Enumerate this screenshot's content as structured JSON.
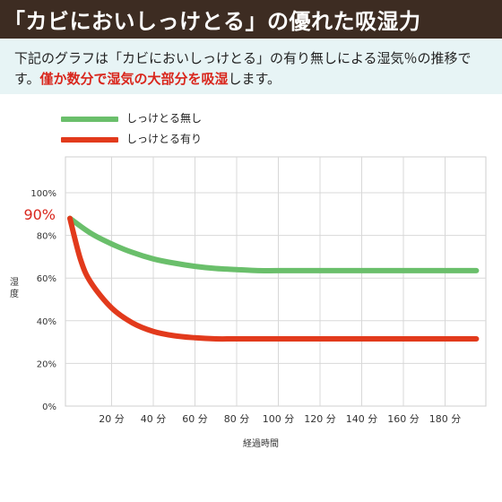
{
  "header": {
    "title": "「カビにおいしっけとる」の優れた吸湿力"
  },
  "description": {
    "part1": "下記のグラフは「カビにおいしっけとる」の有り無しによる湿気％の推移です。",
    "highlight": "僅か数分で湿気の大部分を吸湿",
    "part2": "します。"
  },
  "colors": {
    "header_bg": "#3d2c22",
    "desc_bg": "#e7f4f5",
    "highlight": "#d9261c",
    "series_with": "#6abf6b",
    "series_without": "#e23a1c",
    "grid": "#d8d8d8"
  },
  "chart_data": {
    "type": "line",
    "xlabel": "経過時間",
    "ylabel": "湿度",
    "xlim": [
      0,
      195
    ],
    "ylim": [
      0,
      100
    ],
    "x_ticks": [
      20,
      40,
      60,
      80,
      100,
      120,
      140,
      160,
      180
    ],
    "x_tick_labels": [
      "20 分",
      "40 分",
      "60 分",
      "80 分",
      "100 分",
      "120 分",
      "140 分",
      "160 分",
      "180 分"
    ],
    "y_ticks": [
      0,
      20,
      40,
      60,
      80,
      100
    ],
    "y_tick_labels": [
      "0%",
      "20%",
      "40%",
      "60%",
      "80%",
      "100%"
    ],
    "annotation": {
      "text": "90%",
      "y": 90
    },
    "grid": true,
    "legend_position": "top-left",
    "series": [
      {
        "name": "しっけとる無し",
        "color": "#6abf6b",
        "x": [
          0,
          10,
          20,
          30,
          40,
          50,
          60,
          70,
          80,
          90,
          100,
          120,
          140,
          160,
          180,
          195
        ],
        "values": [
          88,
          81,
          76,
          72,
          69,
          67,
          65.5,
          64.5,
          64,
          63.5,
          63.5,
          63.5,
          63.5,
          63.5,
          63.5,
          63.5
        ]
      },
      {
        "name": "しっけとる有り",
        "color": "#e23a1c",
        "x": [
          0,
          5,
          10,
          20,
          30,
          40,
          50,
          60,
          70,
          80,
          100,
          120,
          140,
          160,
          180,
          195
        ],
        "values": [
          88,
          69,
          58,
          46,
          39,
          35,
          33,
          32,
          31.5,
          31.5,
          31.5,
          31.5,
          31.5,
          31.5,
          31.5,
          31.5
        ]
      }
    ]
  }
}
